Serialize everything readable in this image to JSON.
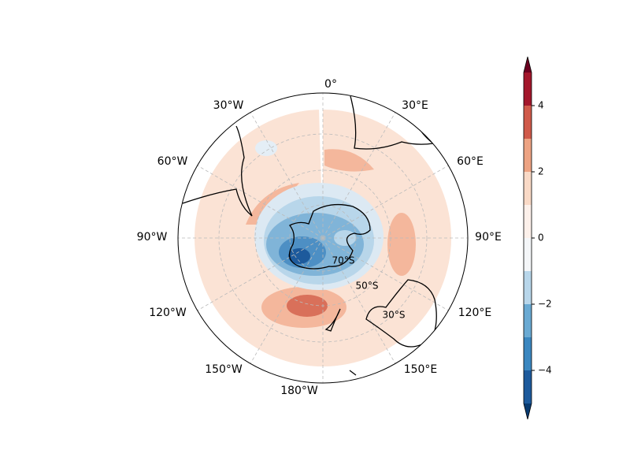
{
  "map": {
    "lon_labels": [
      "0°",
      "30°E",
      "60°E",
      "90°E",
      "120°E",
      "150°E",
      "180°W",
      "150°W",
      "120°W",
      "90°W",
      "60°W",
      "30°W"
    ],
    "lat_labels": [
      "70°S",
      "50°S",
      "30°S"
    ]
  },
  "colorbar": {
    "levels": [
      -5,
      -4,
      -3,
      -2,
      -1,
      0,
      1,
      2,
      3,
      4,
      5
    ],
    "colors": [
      "#1d5a9c",
      "#3b87c0",
      "#6aaad3",
      "#b8d6ea",
      "#f4f6f8",
      "#fcf0ea",
      "#f9d9c6",
      "#eda383",
      "#d05a4a",
      "#a3162b"
    ],
    "extend_colors": [
      "#083a70",
      "#6b0020"
    ],
    "ylim": [
      -5,
      5
    ],
    "ticks": [
      {
        "value": -4,
        "label": "−4"
      },
      {
        "value": -2,
        "label": "−2"
      },
      0,
      2,
      4
    ]
  }
}
